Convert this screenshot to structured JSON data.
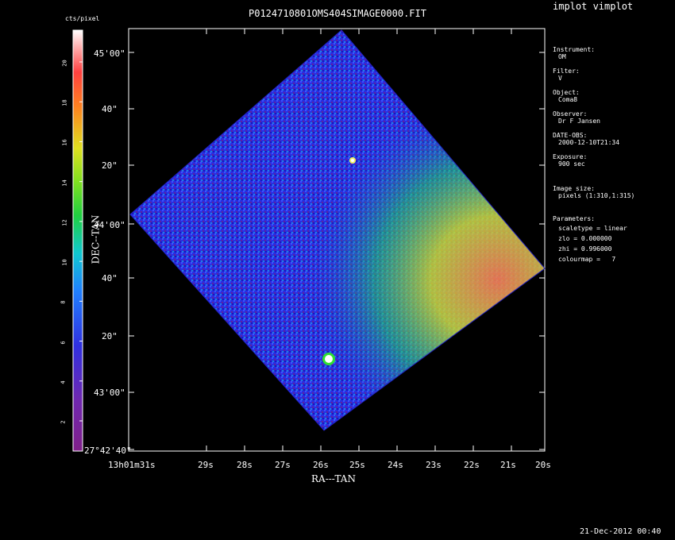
{
  "header": {
    "title": "P0124710801OMS404SIMAGE0000.FIT",
    "program": "implot vimplot"
  },
  "colorbar": {
    "unit_label": "cts/pixel",
    "ticks": [
      "20",
      "18",
      "16",
      "14",
      "12",
      "10",
      "8",
      "6",
      "4",
      "2"
    ]
  },
  "axes": {
    "xlabel": "RA---TAN",
    "ylabel": "DEC--TAN",
    "x_ticks": [
      "13h01m31s",
      "29s",
      "28s",
      "27s",
      "26s",
      "25s",
      "24s",
      "23s",
      "22s",
      "21s",
      "20s"
    ],
    "y_ticks": [
      "45'00\"",
      "40\"",
      "20\"",
      "44'00\"",
      "40\"",
      "20\"",
      "43'00\"",
      "27°42'40\""
    ]
  },
  "info_panel": [
    {
      "label": "Instrument:",
      "value": "OM"
    },
    {
      "label": "Filter:",
      "value": "V"
    },
    {
      "label": "Object:",
      "value": "Coma8"
    },
    {
      "label": "Observer:",
      "value": "Dr F Jansen"
    },
    {
      "label": "DATE-OBS:",
      "value": "2000-12-10T21:34"
    },
    {
      "label": "Exposure:",
      "value": "900 sec"
    },
    {
      "label": "Image size:",
      "value": "pixels (1:310,1:315)"
    },
    {
      "label": "Parameters:",
      "value": "scaletype = linear"
    }
  ],
  "parameters_extra": [
    "zlo = 0.000000",
    "zhi = 0.996000",
    "colourmap =   7"
  ],
  "footer": {
    "timestamp": "21-Dec-2012 00:40"
  },
  "colors": {
    "background": "#000000",
    "frame": "#ffffff",
    "low": "#1a1ae0",
    "mid": "#20c0ff",
    "high": "#ff4040"
  }
}
